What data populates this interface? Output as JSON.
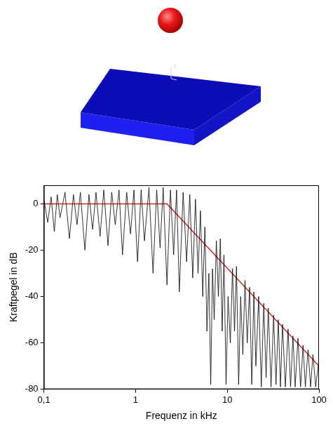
{
  "chart_data": {
    "type": "line",
    "annotations": [
      "z"
    ],
    "x_label": "Frequenz in kHz",
    "y_label": "Kraftpegel in dB",
    "log": "x",
    "grid": false,
    "xlim": [
      0.1,
      100
    ],
    "xticks": [
      {
        "value": 0.1,
        "label": "0,1"
      },
      1,
      10,
      100
    ],
    "ylim": [
      -80,
      8
    ],
    "yticks": [
      -80,
      -60,
      -40,
      -20,
      0
    ],
    "series": [
      {
        "color": "#000000",
        "line_style": "solid",
        "x": [
          0.1,
          0.11,
          0.12,
          0.13,
          0.14,
          0.15,
          0.17,
          0.19,
          0.21,
          0.23,
          0.25,
          0.28,
          0.31,
          0.34,
          0.37,
          0.41,
          0.45,
          0.5,
          0.55,
          0.6,
          0.66,
          0.72,
          0.8,
          0.88,
          0.96,
          1.05,
          1.15,
          1.25,
          1.4,
          1.55,
          1.7,
          1.85,
          2.0,
          2.2,
          2.4,
          2.6,
          2.8,
          3.0,
          3.3,
          3.6,
          3.9,
          4.2,
          4.5,
          4.8,
          5.1,
          5.4,
          5.7,
          6.0,
          6.3,
          6.6,
          6.9,
          7.2,
          7.6,
          8.0,
          8.4,
          8.8,
          9.2,
          9.7,
          10.2,
          10.8,
          11.4,
          12.0,
          12.6,
          13.3,
          14.0,
          14.8,
          15.6,
          16.5,
          17.5,
          18.5,
          19.5,
          20.5,
          22,
          23.5,
          25,
          26.5,
          28,
          30,
          32,
          34,
          36,
          38,
          40,
          43,
          46,
          49,
          52,
          55,
          59,
          63,
          67,
          71,
          76,
          81,
          86,
          92,
          100
        ],
        "values": [
          2,
          -8,
          3,
          -12,
          4,
          -6,
          5,
          -15,
          4,
          -9,
          5,
          -20,
          4,
          -11,
          5,
          -14,
          6,
          -18,
          5,
          -9,
          6,
          -22,
          5,
          -13,
          6,
          -25,
          6,
          -16,
          7,
          -30,
          6,
          -19,
          7,
          -35,
          6,
          -22,
          6,
          -38,
          5,
          -25,
          4,
          -32,
          2,
          -30,
          -3,
          -40,
          -10,
          -55,
          -30,
          -78,
          -28,
          -50,
          -16,
          -40,
          -15,
          -55,
          -22,
          -78,
          -40,
          -60,
          -28,
          -55,
          -27,
          -78,
          -40,
          -65,
          -33,
          -60,
          -36,
          -78,
          -38,
          -70,
          -40,
          -79,
          -43,
          -75,
          -45,
          -79,
          -48,
          -78,
          -50,
          -79,
          -52,
          -79,
          -54,
          -79,
          -57,
          -79,
          -58,
          -79,
          -61,
          -79,
          -63,
          -79,
          -65,
          -79,
          -67
        ]
      },
      {
        "color": "#d62020",
        "line_style": "solid",
        "x": [
          0.1,
          2.2,
          100
        ],
        "values": [
          0,
          0,
          -70
        ]
      }
    ]
  }
}
